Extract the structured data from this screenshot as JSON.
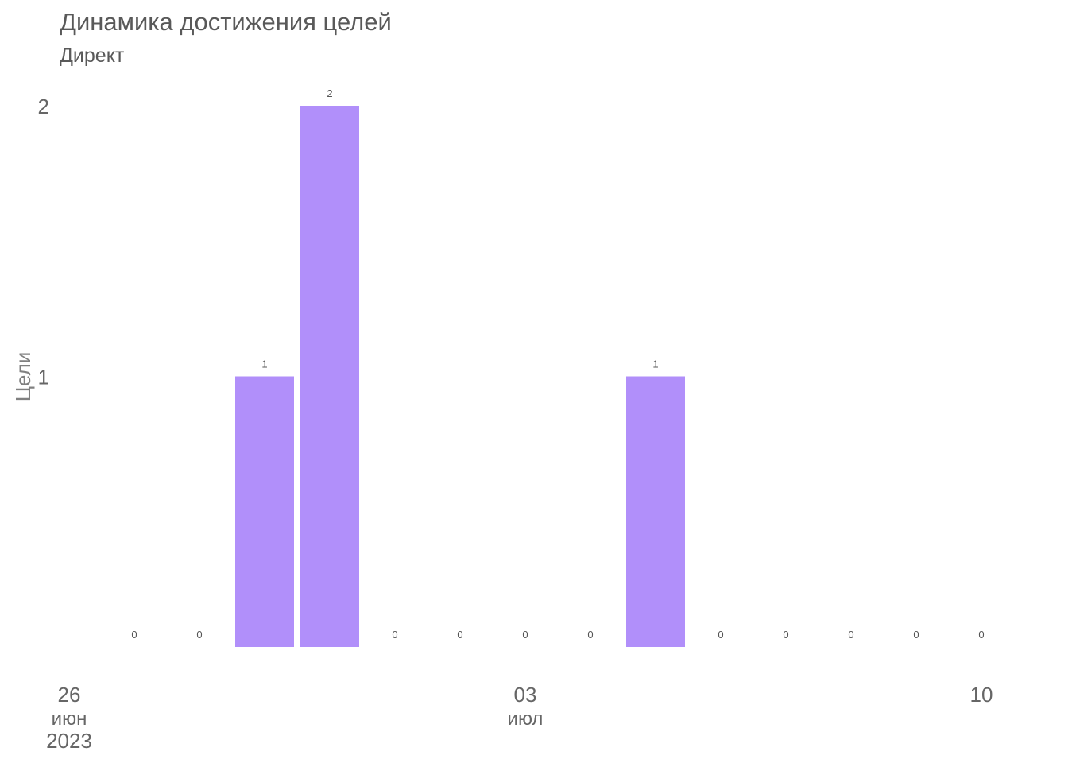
{
  "title": "Динамика достижения целей",
  "subtitle": "Директ",
  "chart_data": {
    "type": "bar",
    "x": [
      "2023-06-26",
      "2023-06-27",
      "2023-06-28",
      "2023-06-29",
      "2023-06-30",
      "2023-07-01",
      "2023-07-02",
      "2023-07-03",
      "2023-07-04",
      "2023-07-05",
      "2023-07-06",
      "2023-07-07",
      "2023-07-08",
      "2023-07-09",
      "2023-07-10"
    ],
    "values": [
      null,
      0,
      0,
      1,
      2,
      0,
      0,
      0,
      0,
      1,
      0,
      0,
      0,
      0,
      0
    ],
    "ylabel": "Цели",
    "xlabel": "",
    "ylim": [
      0,
      2
    ],
    "y_ticks": [
      1,
      2
    ],
    "x_ticks": [
      {
        "date": "2023-06-26",
        "day": "26",
        "month": "июн",
        "year": "2023"
      },
      {
        "date": "2023-07-03",
        "day": "03",
        "month": "июл",
        "year": ""
      },
      {
        "date": "2023-07-10",
        "day": "10",
        "month": "",
        "year": ""
      }
    ],
    "bar_color": "#b18ffa",
    "grid": false,
    "legend": "none"
  }
}
